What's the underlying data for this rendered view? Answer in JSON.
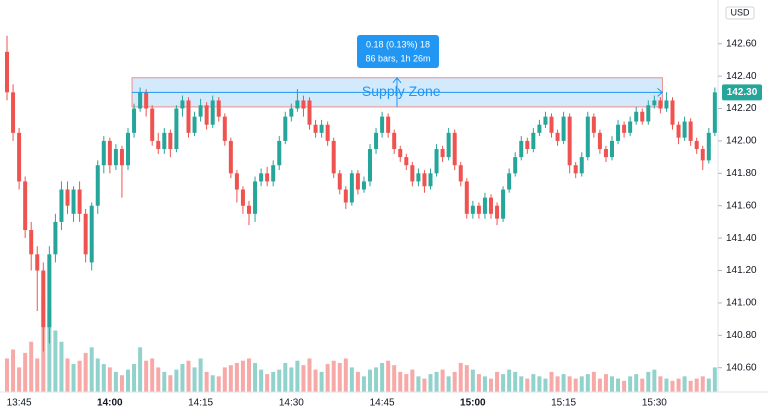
{
  "chart_data": {
    "type": "candlestick",
    "currency": "USD",
    "categories": [
      null,
      null,
      "13:45",
      null,
      null,
      null,
      null,
      null,
      null,
      null,
      null,
      null,
      null,
      null,
      null,
      null,
      null,
      "14:00",
      null,
      null,
      null,
      null,
      null,
      null,
      null,
      null,
      null,
      null,
      null,
      null,
      null,
      null,
      "14:15",
      null,
      null,
      null,
      null,
      null,
      null,
      null,
      null,
      null,
      null,
      null,
      null,
      null,
      null,
      "14:30",
      null,
      null,
      null,
      null,
      null,
      null,
      null,
      null,
      null,
      null,
      null,
      null,
      null,
      null,
      "14:45",
      null,
      null,
      null,
      null,
      null,
      null,
      null,
      null,
      null,
      null,
      null,
      null,
      null,
      null,
      "15:00",
      null,
      null,
      null,
      null,
      null,
      null,
      null,
      null,
      null,
      null,
      null,
      null,
      null,
      null,
      "15:15",
      null,
      null,
      null,
      null,
      null,
      null,
      null,
      null,
      null,
      null,
      null,
      null,
      null,
      null,
      "15:30",
      null,
      null,
      null,
      null,
      null,
      null,
      null,
      null,
      null,
      null
    ],
    "open": [
      142.55,
      142.3,
      142.05,
      141.75,
      141.45,
      141.3,
      141.2,
      140.85,
      141.3,
      141.5,
      141.7,
      141.55,
      141.7,
      141.55,
      141.25,
      141.6,
      141.85,
      142.0,
      141.85,
      141.95,
      141.85,
      142.05,
      142.2,
      142.3,
      142.2,
      142.0,
      141.95,
      142.05,
      141.95,
      142.2,
      142.25,
      142.05,
      142.15,
      142.22,
      142.1,
      142.25,
      142.15,
      142.0,
      141.8,
      141.7,
      141.6,
      141.55,
      141.75,
      141.8,
      141.75,
      141.85,
      142.0,
      142.15,
      142.2,
      142.25,
      142.25,
      142.1,
      142.05,
      142.1,
      142.0,
      141.8,
      141.7,
      141.62,
      141.8,
      141.7,
      141.75,
      141.95,
      142.05,
      142.15,
      142.05,
      141.95,
      141.9,
      141.85,
      141.75,
      141.8,
      141.72,
      141.8,
      141.95,
      141.9,
      142.05,
      141.85,
      141.75,
      141.55,
      141.6,
      141.55,
      141.65,
      141.6,
      141.52,
      141.7,
      141.8,
      141.9,
      142.0,
      141.95,
      142.05,
      142.1,
      142.15,
      142.05,
      142.0,
      142.15,
      141.85,
      141.8,
      141.9,
      142.15,
      142.05,
      141.95,
      141.9,
      142.0,
      142.1,
      142.05,
      142.12,
      142.18,
      142.12,
      142.22,
      142.25,
      142.2,
      142.25,
      142.1,
      142.02,
      142.12,
      142.0,
      141.95,
      141.88,
      142.05
    ],
    "high": [
      142.65,
      142.35,
      142.08,
      141.78,
      141.5,
      141.35,
      141.25,
      141.35,
      141.55,
      141.75,
      141.75,
      141.72,
      141.75,
      141.58,
      141.62,
      141.88,
      142.03,
      142.02,
      141.98,
      141.97,
      142.08,
      142.23,
      142.33,
      142.32,
      142.22,
      142.05,
      142.08,
      142.07,
      142.22,
      142.28,
      142.27,
      142.18,
      142.26,
      142.24,
      142.28,
      142.27,
      142.17,
      142.02,
      141.82,
      141.72,
      141.63,
      141.78,
      141.83,
      141.84,
      141.88,
      142.03,
      142.18,
      142.23,
      142.32,
      142.28,
      142.27,
      142.13,
      142.13,
      142.12,
      142.02,
      141.82,
      141.72,
      141.82,
      141.82,
      141.78,
      141.98,
      142.08,
      142.18,
      142.17,
      142.07,
      141.97,
      141.92,
      141.87,
      141.83,
      141.82,
      141.83,
      141.98,
      141.97,
      142.08,
      142.07,
      141.87,
      141.77,
      141.63,
      141.62,
      141.68,
      141.67,
      141.62,
      141.72,
      141.83,
      141.93,
      142.03,
      142.02,
      142.08,
      142.13,
      142.18,
      142.17,
      142.07,
      142.18,
      142.17,
      141.87,
      141.93,
      142.18,
      142.17,
      142.07,
      141.97,
      142.03,
      142.13,
      142.12,
      142.15,
      142.21,
      142.2,
      142.25,
      142.28,
      142.27,
      142.3,
      142.27,
      142.12,
      142.15,
      142.14,
      142.02,
      141.97,
      142.08,
      142.33
    ],
    "low": [
      142.25,
      142.0,
      141.7,
      141.4,
      141.2,
      140.95,
      140.7,
      140.75,
      141.25,
      141.45,
      141.55,
      141.5,
      141.5,
      141.25,
      141.2,
      141.55,
      141.8,
      141.8,
      141.82,
      141.65,
      141.82,
      142.02,
      142.18,
      142.15,
      141.97,
      141.92,
      141.92,
      141.9,
      141.93,
      142.15,
      142.02,
      142.03,
      142.12,
      142.07,
      142.08,
      142.12,
      141.97,
      141.77,
      141.62,
      141.55,
      141.48,
      141.5,
      141.72,
      141.72,
      141.72,
      141.82,
      141.98,
      142.12,
      142.18,
      142.15,
      142.07,
      142.02,
      142.02,
      141.97,
      141.77,
      141.67,
      141.58,
      141.6,
      141.67,
      141.68,
      141.72,
      141.92,
      142.02,
      142.02,
      141.92,
      141.87,
      141.82,
      141.72,
      141.72,
      141.68,
      141.7,
      141.78,
      141.87,
      141.88,
      141.82,
      141.72,
      141.52,
      141.52,
      141.52,
      141.52,
      141.52,
      141.48,
      141.5,
      141.68,
      141.78,
      141.88,
      141.92,
      141.93,
      142.03,
      142.08,
      142.02,
      141.97,
      141.98,
      141.8,
      141.77,
      141.78,
      141.88,
      142.02,
      141.92,
      141.87,
      141.88,
      141.98,
      142.02,
      142.03,
      142.1,
      142.1,
      142.1,
      142.2,
      142.17,
      142.18,
      142.07,
      141.98,
      142.0,
      141.97,
      141.92,
      141.82,
      141.86,
      142.03
    ],
    "close": [
      142.3,
      142.05,
      141.75,
      141.45,
      141.3,
      141.2,
      140.85,
      141.3,
      141.5,
      141.7,
      141.6,
      141.7,
      141.55,
      141.3,
      141.6,
      141.85,
      142.0,
      141.85,
      141.95,
      141.85,
      142.05,
      142.2,
      142.3,
      142.2,
      142.0,
      141.95,
      142.05,
      141.95,
      142.2,
      142.25,
      142.05,
      142.15,
      142.22,
      142.1,
      142.25,
      142.15,
      142.0,
      141.8,
      141.7,
      141.6,
      141.55,
      141.75,
      141.8,
      141.75,
      141.85,
      142.0,
      142.15,
      142.2,
      142.25,
      142.2,
      142.1,
      142.05,
      142.1,
      142.0,
      141.8,
      141.7,
      141.62,
      141.8,
      141.7,
      141.75,
      141.95,
      142.05,
      142.15,
      142.05,
      141.95,
      141.9,
      141.85,
      141.75,
      141.8,
      141.72,
      141.8,
      141.95,
      141.9,
      142.05,
      141.85,
      141.75,
      141.55,
      141.6,
      141.55,
      141.65,
      141.55,
      141.52,
      141.7,
      141.8,
      141.9,
      142.0,
      141.95,
      142.05,
      142.1,
      142.15,
      142.05,
      142.0,
      142.15,
      141.85,
      141.8,
      141.9,
      142.15,
      142.05,
      141.95,
      141.9,
      142.0,
      142.1,
      142.05,
      142.12,
      142.18,
      142.12,
      142.22,
      142.25,
      142.2,
      142.25,
      142.1,
      142.02,
      142.12,
      142.0,
      141.95,
      141.88,
      142.05,
      142.3
    ],
    "volume": [
      30,
      38,
      22,
      35,
      45,
      30,
      85,
      75,
      55,
      45,
      30,
      25,
      28,
      35,
      40,
      30,
      25,
      22,
      18,
      15,
      20,
      25,
      40,
      28,
      30,
      22,
      18,
      15,
      20,
      25,
      28,
      22,
      30,
      18,
      15,
      14,
      22,
      24,
      26,
      28,
      30,
      26,
      20,
      16,
      18,
      20,
      26,
      22,
      28,
      24,
      30,
      20,
      18,
      25,
      28,
      26,
      30,
      22,
      18,
      14,
      20,
      22,
      26,
      28,
      24,
      18,
      16,
      20,
      14,
      12,
      16,
      18,
      20,
      14,
      18,
      26,
      24,
      20,
      16,
      14,
      12,
      18,
      16,
      20,
      18,
      14,
      12,
      16,
      14,
      12,
      18,
      14,
      16,
      14,
      12,
      14,
      16,
      18,
      12,
      16,
      14,
      12,
      10,
      14,
      16,
      12,
      18,
      20,
      14,
      12,
      10,
      12,
      14,
      10,
      12,
      14,
      12,
      22
    ],
    "up_color": "#26a69a",
    "down_color": "#ef5350",
    "ylim": [
      140.45,
      142.87
    ],
    "yticks": [
      {
        "value": 140.6,
        "label": "140.60"
      },
      {
        "value": 140.8,
        "label": "140.80"
      },
      {
        "value": 141.0,
        "label": "141.00"
      },
      {
        "value": 141.2,
        "label": "141.20"
      },
      {
        "value": 141.4,
        "label": "141.40"
      },
      {
        "value": 141.6,
        "label": "141.60"
      },
      {
        "value": 141.8,
        "label": "141.80"
      },
      {
        "value": 142.0,
        "label": "142.00"
      },
      {
        "value": 142.2,
        "label": "142.20"
      },
      {
        "value": 142.4,
        "label": "142.40"
      },
      {
        "value": 142.6,
        "label": "142.60"
      }
    ],
    "grid": false,
    "last_price": {
      "value": 142.3,
      "label": "142.30"
    },
    "supply_zone": {
      "label": "Supply Zone",
      "top": 142.39,
      "bottom": 142.21,
      "measure_line1": "0.18 (0.13%) 18",
      "measure_line2": "86 bars, 1h 26m"
    }
  }
}
